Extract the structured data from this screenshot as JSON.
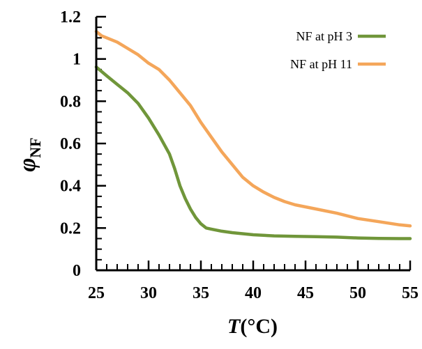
{
  "chart_data": {
    "type": "line",
    "title": "",
    "xlabel": {
      "symbol": "T",
      "unit": "(°C)"
    },
    "ylabel": {
      "symbol": "φ",
      "subscript": "NF"
    },
    "xlim": [
      25,
      55
    ],
    "ylim": [
      0,
      1.2
    ],
    "xticks": [
      {
        "value": 25,
        "label": "25"
      },
      {
        "value": 30,
        "label": "30"
      },
      {
        "value": 35,
        "label": "35"
      },
      {
        "value": 40,
        "label": "40"
      },
      {
        "value": 45,
        "label": "45"
      },
      {
        "value": 50,
        "label": "50"
      },
      {
        "value": 55,
        "label": "55"
      }
    ],
    "yticks": [
      {
        "value": 0,
        "label": "0"
      },
      {
        "value": 0.2,
        "label": "0.2"
      },
      {
        "value": 0.4,
        "label": "0.4"
      },
      {
        "value": 0.6,
        "label": "0.6"
      },
      {
        "value": 0.8,
        "label": "0.8"
      },
      {
        "value": 1.0,
        "label": "1"
      },
      {
        "value": 1.2,
        "label": "1.2"
      }
    ],
    "x_minor_step": 1,
    "y_minor_step": 0.05,
    "grid": false,
    "legend_position": "top-right",
    "series": [
      {
        "name": "NF at pH 3",
        "color": "#70963A",
        "x": [
          25,
          26,
          27,
          28,
          29,
          30,
          31,
          32,
          32.5,
          33,
          33.5,
          34,
          34.5,
          35,
          35.5,
          36,
          37,
          38,
          40,
          42,
          44,
          46,
          48,
          50,
          52,
          54,
          55
        ],
        "y": [
          0.962,
          0.92,
          0.88,
          0.84,
          0.79,
          0.72,
          0.64,
          0.55,
          0.48,
          0.4,
          0.34,
          0.29,
          0.25,
          0.22,
          0.2,
          0.195,
          0.185,
          0.178,
          0.168,
          0.163,
          0.161,
          0.159,
          0.157,
          0.153,
          0.151,
          0.15,
          0.15
        ]
      },
      {
        "name": "NF at pH 11",
        "color": "#F4A65A",
        "x": [
          25,
          25.5,
          26,
          27,
          28,
          29,
          30,
          31,
          32,
          33,
          34,
          35,
          36,
          37,
          38,
          39,
          40,
          41,
          42,
          43,
          44,
          45,
          46,
          48,
          50,
          52,
          54,
          55
        ],
        "y": [
          1.13,
          1.11,
          1.1,
          1.08,
          1.05,
          1.02,
          0.98,
          0.95,
          0.9,
          0.84,
          0.78,
          0.7,
          0.63,
          0.56,
          0.5,
          0.44,
          0.4,
          0.37,
          0.345,
          0.325,
          0.31,
          0.3,
          0.29,
          0.27,
          0.245,
          0.23,
          0.215,
          0.21
        ]
      }
    ]
  }
}
